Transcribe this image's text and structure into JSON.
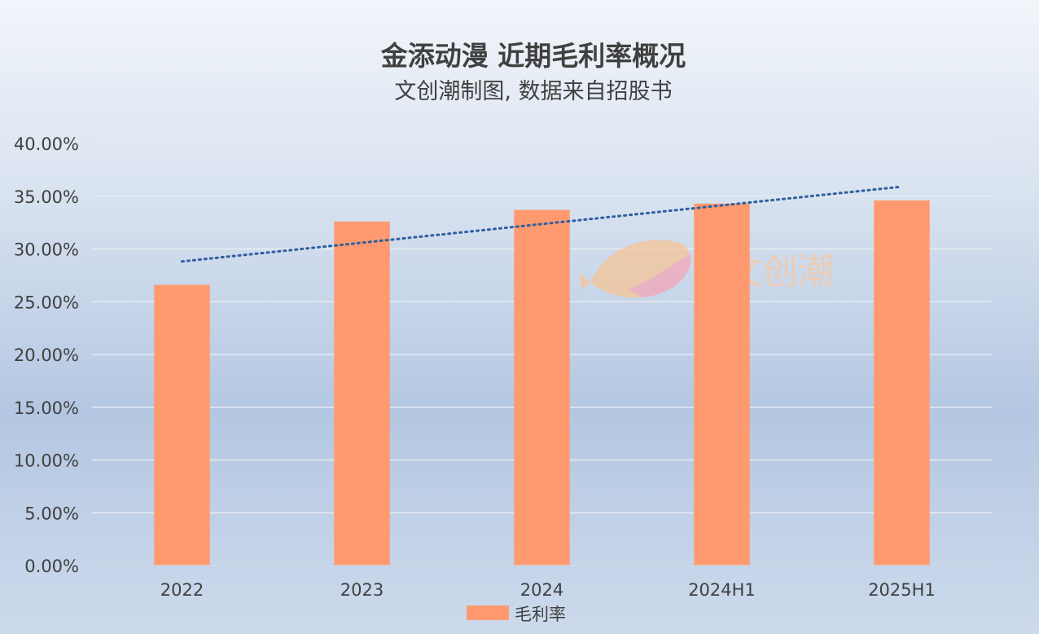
{
  "chart_data": {
    "type": "bar",
    "title": "金添动漫 近期毛利率概况",
    "subtitle": "文创潮制图, 数据来自招股书",
    "categories": [
      "2022",
      "2023",
      "2024",
      "2024H1",
      "2025H1"
    ],
    "series": [
      {
        "name": "毛利率",
        "values": [
          26.6,
          32.6,
          33.7,
          34.3,
          34.6
        ],
        "color": "#ff9a70"
      }
    ],
    "trendline": {
      "type": "linear",
      "style": "dotted",
      "color": "#2f5f9e"
    },
    "y_ticks": [
      "0.00%",
      "5.00%",
      "10.00%",
      "15.00%",
      "20.00%",
      "25.00%",
      "30.00%",
      "35.00%",
      "40.00%"
    ],
    "ylim": [
      0,
      40
    ],
    "y_format": "percent",
    "grid": true,
    "legend_position": "bottom-center"
  },
  "watermark": {
    "text": "文创潮",
    "icon": "fish-leaf-logo"
  }
}
